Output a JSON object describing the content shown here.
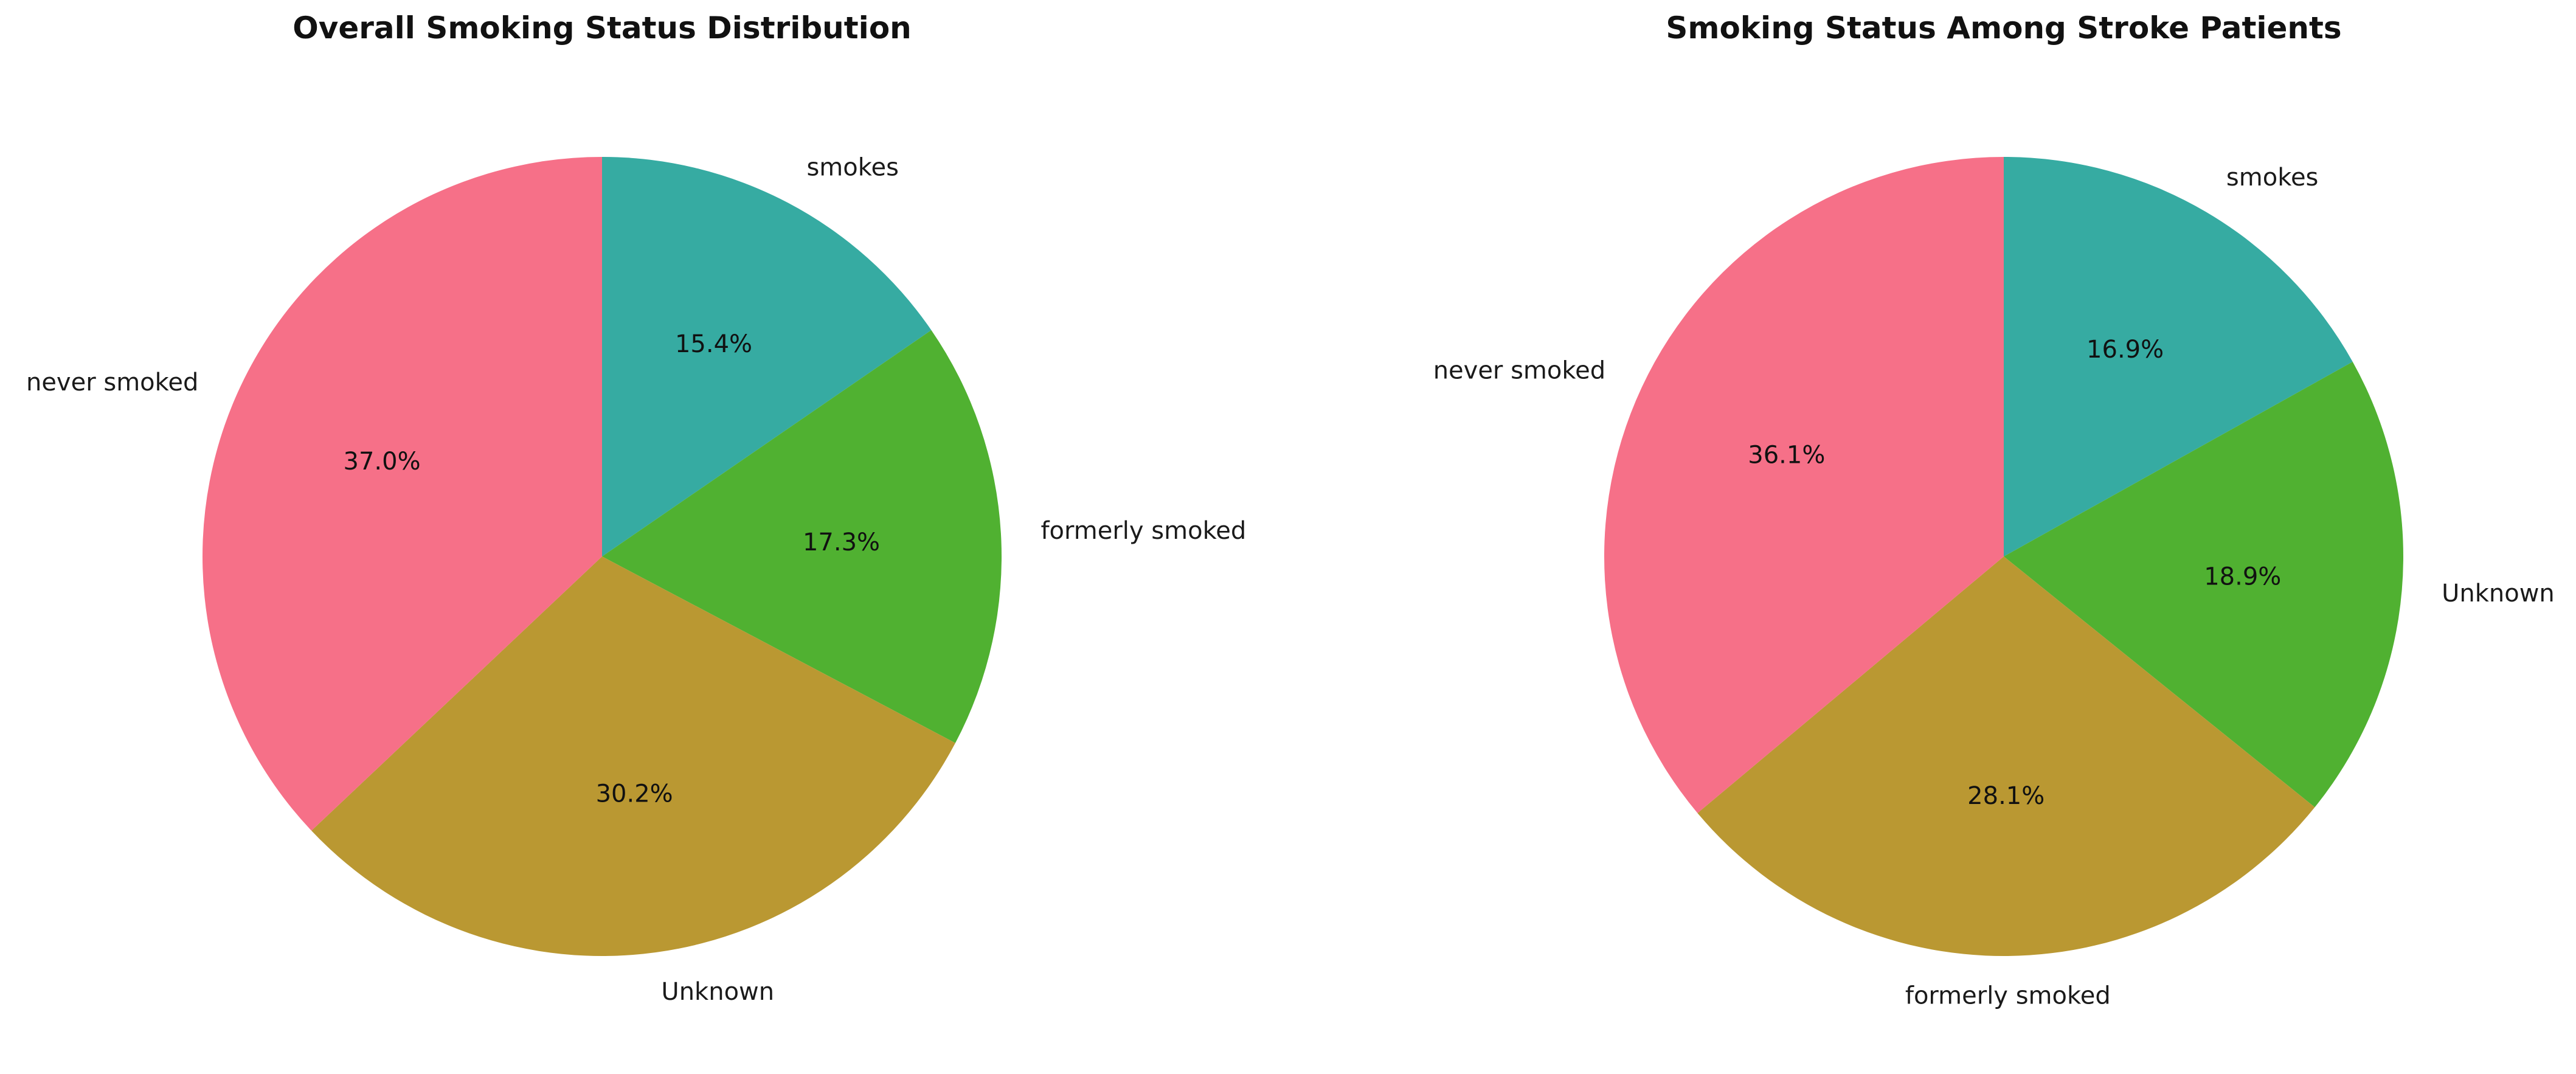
{
  "chart_data": [
    {
      "type": "pie",
      "title": "Overall Smoking Status Distribution",
      "slices": [
        {
          "label": "smokes",
          "value": 15.4,
          "pct_label": "15.4%",
          "color": "#36ABA2"
        },
        {
          "label": "formerly smoked",
          "value": 17.3,
          "pct_label": "17.3%",
          "color": "#50B131"
        },
        {
          "label": "Unknown",
          "value": 30.2,
          "pct_label": "30.2%",
          "color": "#BA9832"
        },
        {
          "label": "never smoked",
          "value": 37.0,
          "pct_label": "37.0%",
          "color": "#F67088"
        }
      ],
      "start_angle": "top",
      "direction": "clockwise"
    },
    {
      "type": "pie",
      "title": "Smoking Status Among Stroke Patients",
      "slices": [
        {
          "label": "smokes",
          "value": 16.9,
          "pct_label": "16.9%",
          "color": "#36ABA2"
        },
        {
          "label": "Unknown",
          "value": 18.9,
          "pct_label": "18.9%",
          "color": "#50B131"
        },
        {
          "label": "formerly smoked",
          "value": 28.1,
          "pct_label": "28.1%",
          "color": "#BA9832"
        },
        {
          "label": "never smoked",
          "value": 36.1,
          "pct_label": "36.1%",
          "color": "#F67088"
        }
      ],
      "start_angle": "top",
      "direction": "clockwise"
    }
  ]
}
